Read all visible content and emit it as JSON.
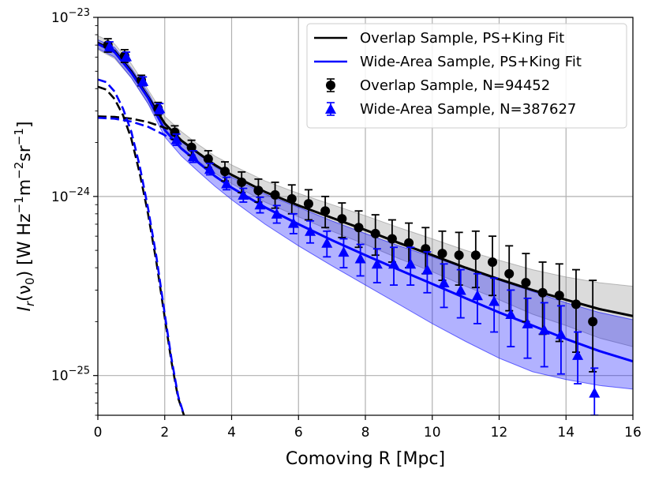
{
  "chart_data": {
    "type": "scatter",
    "xlabel": "Comoving R [Mpc]",
    "ylabel": "I_r(ν_0) [W Hz^-1 m^-2 sr^-1]",
    "ylabel_parts": {
      "main": "I",
      "sub_r": "r",
      "paren_open": "(ν",
      "sub_0": "0",
      "paren_close": ") [W Hz",
      "exp1": "−1",
      "m": "m",
      "exp2": "−2",
      "sr": "sr",
      "exp3": "−1",
      "close": "]"
    },
    "xlim": [
      0,
      16
    ],
    "ylim": [
      6e-26,
      1e-23
    ],
    "yscale": "log",
    "grid": true,
    "x_ticks": [
      0,
      2,
      4,
      6,
      8,
      10,
      12,
      14,
      16
    ],
    "x_tick_labels": [
      "0",
      "2",
      "4",
      "6",
      "8",
      "10",
      "12",
      "14",
      "16"
    ],
    "y_ticks": [
      1e-25,
      1e-24,
      1e-23
    ],
    "y_tick_labels": [
      {
        "base": "10",
        "exp": "−25"
      },
      {
        "base": "10",
        "exp": "−24"
      },
      {
        "base": "10",
        "exp": "−23"
      }
    ],
    "legend_position": "top-right",
    "legend": [
      {
        "label": "Overlap Sample, PS+King Fit",
        "kind": "line",
        "color": "#000000"
      },
      {
        "label": "Wide-Area Sample, PS+King Fit",
        "kind": "line",
        "color": "#0000ff"
      },
      {
        "label": "Overlap Sample, N=94452",
        "kind": "circle",
        "color": "#000000"
      },
      {
        "label": "Wide-Area Sample, N=387627",
        "kind": "triangle",
        "color": "#0000ff"
      }
    ],
    "series": [
      {
        "name": "Overlap Sample, N=94452",
        "color": "#000000",
        "marker": "circle",
        "x": [
          0.3,
          0.8,
          1.3,
          1.8,
          2.3,
          2.8,
          3.3,
          3.8,
          4.3,
          4.8,
          5.3,
          5.8,
          6.3,
          6.8,
          7.3,
          7.8,
          8.3,
          8.8,
          9.3,
          9.8,
          10.3,
          10.8,
          11.3,
          11.8,
          12.3,
          12.8,
          13.3,
          13.8,
          14.3,
          14.8
        ],
        "y": [
          7e-24,
          6.1e-24,
          4.45e-24,
          3.1e-24,
          2.28e-24,
          1.88e-24,
          1.62e-24,
          1.38e-24,
          1.2e-24,
          1.08e-24,
          1.02e-24,
          9.7e-25,
          9.1e-25,
          8.3e-25,
          7.5e-25,
          6.7e-25,
          6.2e-25,
          5.8e-25,
          5.5e-25,
          5.1e-25,
          4.8e-25,
          4.7e-25,
          4.7e-25,
          4.3e-25,
          3.7e-25,
          3.3e-25,
          2.9e-25,
          2.8e-25,
          2.5e-25,
          2e-25
        ],
        "err_lo": [
          6.4e-24,
          5.6e-24,
          4.15e-24,
          2.85e-24,
          2.08e-24,
          1.7e-24,
          1.45e-24,
          1.22e-24,
          1.05e-24,
          9.3e-25,
          8.6e-25,
          8e-25,
          7.4e-25,
          6.7e-25,
          5.9e-25,
          5.2e-25,
          4.7e-25,
          4.3e-25,
          4e-25,
          3.7e-25,
          3.4e-25,
          3.2e-25,
          3.1e-25,
          2.8e-25,
          2.3e-25,
          2e-25,
          1.7e-25,
          1.55e-25,
          1.35e-25,
          1.05e-25
        ],
        "err_hi": [
          7.6e-24,
          6.6e-24,
          4.75e-24,
          3.35e-24,
          2.48e-24,
          2.06e-24,
          1.8e-24,
          1.56e-24,
          1.37e-24,
          1.25e-24,
          1.2e-24,
          1.16e-24,
          1.09e-24,
          1e-24,
          9.2e-25,
          8.3e-25,
          7.9e-25,
          7.4e-25,
          7.1e-25,
          6.7e-25,
          6.4e-25,
          6.3e-25,
          6.4e-25,
          6e-25,
          5.3e-25,
          4.8e-25,
          4.3e-25,
          4.2e-25,
          3.9e-25,
          3.4e-25
        ]
      },
      {
        "name": "Wide-Area Sample, N=387627",
        "color": "#0000ff",
        "marker": "triangle",
        "x": [
          0.35,
          0.85,
          1.35,
          1.85,
          2.35,
          2.85,
          3.35,
          3.85,
          4.35,
          4.85,
          5.35,
          5.85,
          6.35,
          6.85,
          7.35,
          7.85,
          8.35,
          8.85,
          9.35,
          9.85,
          10.35,
          10.85,
          11.35,
          11.85,
          12.35,
          12.85,
          13.35,
          13.85,
          14.35,
          14.85
        ],
        "y": [
          6.9e-24,
          6.05e-24,
          4.4e-24,
          3.1e-24,
          2.08e-24,
          1.67e-24,
          1.42e-24,
          1.18e-24,
          1.02e-24,
          9e-25,
          8e-25,
          7.1e-25,
          6.4e-25,
          5.5e-25,
          4.9e-25,
          4.5e-25,
          4.2e-25,
          4.2e-25,
          4.2e-25,
          3.9e-25,
          3.3e-25,
          3e-25,
          2.8e-25,
          2.6e-25,
          2.2e-25,
          1.95e-25,
          1.8e-25,
          1.7e-25,
          1.3e-25,
          8e-26
        ],
        "err_lo": [
          6.5e-24,
          5.7e-24,
          4.15e-24,
          2.9e-24,
          1.93e-24,
          1.55e-24,
          1.32e-24,
          1.09e-24,
          9.3e-25,
          8.1e-25,
          7.1e-25,
          6.2e-25,
          5.5e-25,
          4.6e-25,
          4e-25,
          3.6e-25,
          3.3e-25,
          3.2e-25,
          3.2e-25,
          2.9e-25,
          2.4e-25,
          2.1e-25,
          1.95e-25,
          1.75e-25,
          1.45e-25,
          1.25e-25,
          1.12e-25,
          1.02e-25,
          9e-26,
          6e-26
        ],
        "err_hi": [
          7.3e-24,
          6.4e-24,
          4.65e-24,
          3.3e-24,
          2.23e-24,
          1.8e-24,
          1.53e-24,
          1.28e-24,
          1.11e-24,
          9.9e-25,
          8.9e-25,
          8e-25,
          7.3e-25,
          6.4e-25,
          5.8e-25,
          5.4e-25,
          5.1e-25,
          5.2e-25,
          5.2e-25,
          4.9e-25,
          4.2e-25,
          3.9e-25,
          3.7e-25,
          3.5e-25,
          3e-25,
          2.7e-25,
          2.55e-25,
          2.45e-25,
          1.75e-25,
          1.1e-25
        ]
      }
    ],
    "fit_curves": [
      {
        "name": "Overlap Sample, PS+King Fit",
        "color": "#000000",
        "style": "solid",
        "x": [
          0,
          0.5,
          1.0,
          1.5,
          2.0,
          2.5,
          3.0,
          3.5,
          4.0,
          5.0,
          6.0,
          7.0,
          8.0,
          9.0,
          10.0,
          11.0,
          12.0,
          13.0,
          14.0,
          15.0,
          16.0
        ],
        "y": [
          7.2e-24,
          6.5e-24,
          5e-24,
          3.6e-24,
          2.55e-24,
          2.05e-24,
          1.75e-24,
          1.5e-24,
          1.32e-24,
          1.06e-24,
          8.9e-25,
          7.6e-25,
          6.5e-25,
          5.5e-25,
          4.7e-25,
          4e-25,
          3.45e-25,
          3e-25,
          2.65e-25,
          2.35e-25,
          2.15e-25
        ]
      },
      {
        "name": "Wide-Area Sample, PS+King Fit",
        "color": "#0000ff",
        "style": "solid",
        "x": [
          0,
          0.5,
          1.0,
          1.5,
          2.0,
          2.5,
          3.0,
          3.5,
          4.0,
          5.0,
          6.0,
          7.0,
          8.0,
          9.0,
          10.0,
          11.0,
          12.0,
          13.0,
          14.0,
          15.0,
          16.0
        ],
        "y": [
          7.1e-24,
          6.4e-24,
          4.9e-24,
          3.55e-24,
          2.35e-24,
          1.85e-24,
          1.55e-24,
          1.3e-24,
          1.12e-24,
          8.7e-25,
          7e-25,
          5.7e-25,
          4.7e-25,
          3.9e-25,
          3.25e-25,
          2.7e-25,
          2.25e-25,
          1.9e-25,
          1.6e-25,
          1.37e-25,
          1.2e-25
        ]
      },
      {
        "name": "Overlap PS component",
        "color": "#000000",
        "style": "dashed",
        "x": [
          0,
          0.25,
          0.5,
          0.75,
          1.0,
          1.25,
          1.5,
          1.75,
          2.0,
          2.2,
          2.4,
          2.6
        ],
        "y": [
          4.1e-24,
          3.95e-24,
          3.5e-24,
          2.85e-24,
          2.1e-24,
          1.35e-24,
          8e-25,
          4.3e-25,
          2.1e-25,
          1.2e-25,
          7.5e-26,
          5.8e-26
        ]
      },
      {
        "name": "Overlap King component",
        "color": "#000000",
        "style": "dashed",
        "x": [
          0,
          0.5,
          1.0,
          1.5,
          2.0,
          2.5
        ],
        "y": [
          2.8e-24,
          2.78e-24,
          2.72e-24,
          2.6e-24,
          2.42e-24,
          2.2e-24
        ]
      },
      {
        "name": "Wide-Area PS component",
        "color": "#0000ff",
        "style": "dashed",
        "x": [
          0,
          0.25,
          0.5,
          0.75,
          1.0,
          1.25,
          1.5,
          1.75,
          2.0,
          2.2,
          2.4,
          2.6
        ],
        "y": [
          4.5e-24,
          4.35e-24,
          3.85e-24,
          3.1e-24,
          2.3e-24,
          1.48e-24,
          8.6e-25,
          4.6e-25,
          2.2e-25,
          1.25e-25,
          7.7e-26,
          5.8e-26
        ]
      },
      {
        "name": "Wide-Area King component",
        "color": "#0000ff",
        "style": "dashed",
        "x": [
          0,
          0.5,
          1.0,
          1.5,
          2.0,
          2.5
        ],
        "y": [
          2.75e-24,
          2.72e-24,
          2.62e-24,
          2.45e-24,
          2.2e-24,
          1.95e-24
        ]
      }
    ],
    "bands": [
      {
        "name": "Overlap Sample uncertainty band",
        "color": "#888888",
        "x": [
          0,
          0.5,
          1.0,
          1.5,
          2.0,
          2.5,
          3.0,
          3.5,
          4.0,
          5.0,
          6.0,
          7.0,
          8.0,
          9.0,
          10.0,
          11.0,
          12.0,
          13.0,
          14.0,
          15.0,
          16.0
        ],
        "lo": [
          6.6e-24,
          5.9e-24,
          4.6e-24,
          3.3e-24,
          2.35e-24,
          1.85e-24,
          1.58e-24,
          1.35e-24,
          1.18e-24,
          9.3e-25,
          7.7e-25,
          6.4e-25,
          5.4e-25,
          4.5e-25,
          3.8e-25,
          3.15e-25,
          2.65e-25,
          2.2e-25,
          1.9e-25,
          1.62e-25,
          1.45e-25
        ],
        "hi": [
          7.9e-24,
          7.1e-24,
          5.5e-24,
          3.95e-24,
          2.8e-24,
          2.3e-24,
          1.95e-24,
          1.68e-24,
          1.5e-24,
          1.22e-24,
          1.04e-24,
          9e-25,
          7.8e-25,
          6.7e-25,
          5.8e-25,
          5e-25,
          4.4e-25,
          3.9e-25,
          3.55e-25,
          3.3e-25,
          3.15e-25
        ]
      },
      {
        "name": "Wide-Area Sample uncertainty band",
        "color": "#0000ff",
        "x": [
          0,
          0.5,
          1.0,
          1.5,
          2.0,
          2.5,
          3.0,
          3.5,
          4.0,
          5.0,
          6.0,
          7.0,
          8.0,
          9.0,
          10.0,
          11.0,
          12.0,
          13.0,
          14.0,
          15.0,
          16.0
        ],
        "lo": [
          6.7e-24,
          6e-24,
          4.6e-24,
          3.3e-24,
          2.15e-24,
          1.68e-24,
          1.38e-24,
          1.14e-24,
          9.6e-25,
          7e-25,
          5.3e-25,
          4.1e-25,
          3.2e-25,
          2.5e-25,
          1.95e-25,
          1.55e-25,
          1.25e-25,
          1.05e-25,
          9.5e-26,
          8.8e-26,
          8.4e-26
        ],
        "hi": [
          7.5e-24,
          6.8e-24,
          5.2e-24,
          3.8e-24,
          2.55e-24,
          2.02e-24,
          1.72e-24,
          1.47e-24,
          1.28e-24,
          1.03e-24,
          8.7e-25,
          7.3e-25,
          6.2e-25,
          5.3e-25,
          4.6e-25,
          3.95e-25,
          3.4e-25,
          2.95e-25,
          2.55e-25,
          2.25e-25,
          2.05e-25
        ]
      }
    ]
  }
}
